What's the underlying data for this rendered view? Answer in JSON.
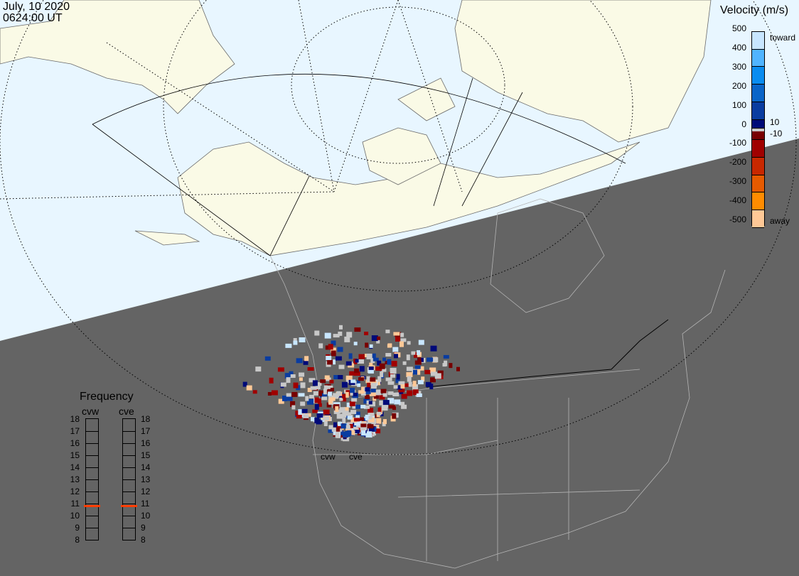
{
  "header": {
    "date": "July, 10 2020",
    "time": "0624:00 UT"
  },
  "velocity_legend": {
    "title": "Velocity (m/s)",
    "ticks": [
      "500",
      "400",
      "300",
      "200",
      "100",
      "0",
      "-100",
      "-200",
      "-300",
      "-400",
      "-500"
    ],
    "toward_label": "toward",
    "away_label": "away",
    "pos_threshold": "10",
    "neg_threshold": "-10",
    "colors": [
      "#c8e6ff",
      "#50b4ff",
      "#0a8cf0",
      "#0a64c8",
      "#0a3ca0",
      "#000a78",
      "#780000",
      "#a00000",
      "#c82800",
      "#e65a00",
      "#ff8c00",
      "#ffc896"
    ]
  },
  "frequency_panel": {
    "title": "Frequency",
    "radars": [
      {
        "name": "cvw",
        "freq_mhz": 10.8
      },
      {
        "name": "cve",
        "freq_mhz": 10.8
      }
    ],
    "ticks": [
      "18",
      "17",
      "16",
      "15",
      "14",
      "13",
      "12",
      "11",
      "10",
      "9",
      "8"
    ],
    "marker_color": "#ff3c00"
  },
  "radar_labels": {
    "west": "cvw",
    "east": "cve"
  },
  "colors": {
    "dayside": "#e8f6ff",
    "nightside": "#646464",
    "land_day": "#fafae6",
    "scatter_ground": "#c8c8c8"
  }
}
